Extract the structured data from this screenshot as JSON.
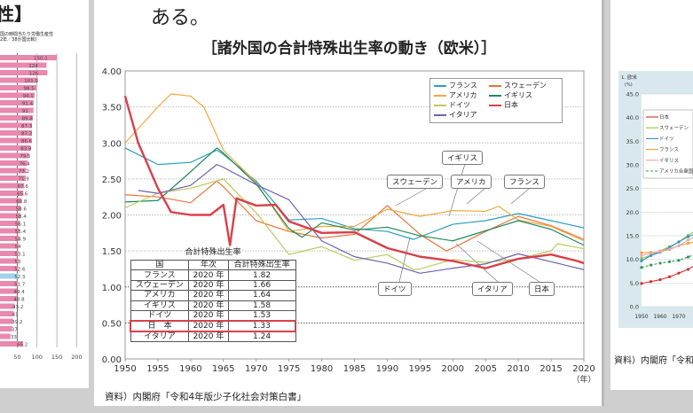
{
  "left_panel": {
    "heading": "性】",
    "subtitle_line1": "国の時間当たり労働生産性",
    "subtitle_line2": "2年／38か国比較)",
    "chart": {
      "type": "bar",
      "orientation": "horizontal",
      "values": [
        150.1,
        124,
        126,
        101.9,
        98.5,
        94.1,
        91.4,
        91,
        89.8,
        87.3,
        87.2,
        86.6,
        83.9,
        79.5,
        76.4,
        73.2,
        71.9,
        67.6,
        65.6,
        60.8,
        58.6,
        58.4,
        56.1,
        55.4,
        54.9,
        54,
        53.1,
        53,
        52.6,
        52.3,
        51.7,
        49.4,
        48.8,
        43.2,
        41,
        39.2,
        37,
        33,
        65.2
      ],
      "highlight_index": 29,
      "bar_color": "#e889ad",
      "highlight_color": "#9fd4ea",
      "xticks": [
        "50",
        "100",
        "150",
        "200"
      ]
    }
  },
  "main": {
    "lead_text": "ある。",
    "title": "［諸外国の合計特殊出生率の動き（欧米）］",
    "source": "資料）内閣府「令和4年版少子化社会対策白書」",
    "x_unit": "（年）",
    "table": {
      "title": "合計特殊出生率",
      "headers": [
        "国",
        "年次",
        "合計特殊出生率"
      ],
      "rows": [
        [
          "フランス",
          "2020 年",
          "1.82"
        ],
        [
          "スウェーデン",
          "2020 年",
          "1.66"
        ],
        [
          "アメリカ",
          "2020 年",
          "1.64"
        ],
        [
          "イギリス",
          "2020 年",
          "1.58"
        ],
        [
          "ドイツ",
          "2020 年",
          "1.53"
        ],
        [
          "日　本",
          "2020 年",
          "1.33"
        ],
        [
          "イタリア",
          "2020 年",
          "1.24"
        ]
      ],
      "highlight_row": 5
    },
    "callouts": [
      "イギリス",
      "スウェーデン",
      "アメリカ",
      "フランス",
      "ドイツ",
      "イタリア",
      "日本"
    ]
  },
  "chart_data": [
    {
      "type": "line",
      "title": "［諸外国の合計特殊出生率の動き（欧米）］",
      "xlim": [
        1950,
        2020
      ],
      "ylim": [
        0,
        4
      ],
      "xticks": [
        "1950",
        "1955",
        "1960",
        "1965",
        "1970",
        "1975",
        "1980",
        "1985",
        "1990",
        "1995",
        "2000",
        "2005",
        "2010",
        "2015",
        "2020"
      ],
      "yticks": [
        "0.00",
        "0.50",
        "1.00",
        "1.50",
        "2.00",
        "2.50",
        "3.00",
        "3.50",
        "4.00"
      ],
      "grid": "horizontal dotted",
      "legend": "top-right",
      "series": [
        {
          "name": "フランス",
          "color": "#2a9fc0",
          "width": 1.2,
          "x": [
            1950,
            1955,
            1960,
            1964,
            1965,
            1970,
            1975,
            1980,
            1985,
            1990,
            1994,
            2000,
            2005,
            2010,
            2015,
            2020
          ],
          "y": [
            2.93,
            2.7,
            2.73,
            2.9,
            2.84,
            2.47,
            1.93,
            1.95,
            1.81,
            1.77,
            1.66,
            1.87,
            1.92,
            2.02,
            1.92,
            1.82
          ]
        },
        {
          "name": "スウェーデン",
          "color": "#e8743b",
          "width": 1.2,
          "x": [
            1950,
            1955,
            1960,
            1964,
            1965,
            1970,
            1975,
            1980,
            1985,
            1990,
            1995,
            1999,
            2000,
            2005,
            2010,
            2015,
            2020
          ],
          "y": [
            2.28,
            2.25,
            2.17,
            2.47,
            2.39,
            1.92,
            1.77,
            1.68,
            1.73,
            2.13,
            1.73,
            1.5,
            1.54,
            1.77,
            1.98,
            1.85,
            1.66
          ]
        },
        {
          "name": "アメリカ",
          "color": "#f0a840",
          "width": 1.2,
          "x": [
            1950,
            1955,
            1957,
            1960,
            1962,
            1965,
            1970,
            1975,
            1980,
            1985,
            1990,
            1995,
            2000,
            2005,
            2007,
            2010,
            2015,
            2020
          ],
          "y": [
            3.0,
            3.5,
            3.68,
            3.65,
            3.5,
            2.9,
            2.45,
            1.77,
            1.84,
            1.84,
            2.08,
            1.98,
            2.06,
            2.05,
            2.12,
            1.93,
            1.84,
            1.64
          ]
        },
        {
          "name": "イギリス",
          "color": "#1f8a5a",
          "width": 1.2,
          "x": [
            1950,
            1955,
            1960,
            1964,
            1965,
            1970,
            1975,
            1977,
            1980,
            1985,
            1990,
            1995,
            2000,
            2005,
            2010,
            2015,
            2020
          ],
          "y": [
            2.18,
            2.2,
            2.6,
            2.93,
            2.86,
            2.43,
            1.81,
            1.69,
            1.89,
            1.79,
            1.83,
            1.71,
            1.64,
            1.78,
            1.92,
            1.8,
            1.58
          ]
        },
        {
          "name": "ドイツ",
          "color": "#b8cc5a",
          "width": 1.2,
          "x": [
            1950,
            1955,
            1960,
            1965,
            1970,
            1975,
            1980,
            1985,
            1990,
            1994,
            1995,
            2000,
            2005,
            2010,
            2015,
            2016,
            2020
          ],
          "y": [
            2.1,
            2.3,
            2.37,
            2.5,
            2.03,
            1.45,
            1.56,
            1.37,
            1.45,
            1.24,
            1.25,
            1.38,
            1.34,
            1.39,
            1.5,
            1.6,
            1.53
          ]
        },
        {
          "name": "イタリア",
          "color": "#7060b0",
          "width": 1.2,
          "x": [
            1952,
            1955,
            1960,
            1964,
            1965,
            1970,
            1975,
            1980,
            1985,
            1990,
            1995,
            2000,
            2005,
            2010,
            2015,
            2020
          ],
          "y": [
            2.34,
            2.3,
            2.41,
            2.7,
            2.66,
            2.42,
            2.21,
            1.64,
            1.42,
            1.33,
            1.19,
            1.26,
            1.32,
            1.46,
            1.35,
            1.24
          ]
        },
        {
          "name": "日本",
          "color": "#d9404a",
          "width": 2.4,
          "x": [
            1950,
            1952,
            1955,
            1957,
            1960,
            1963,
            1965,
            1966,
            1967,
            1970,
            1973,
            1975,
            1980,
            1985,
            1990,
            1995,
            2000,
            2005,
            2010,
            2015,
            2019,
            2020
          ],
          "y": [
            3.65,
            3.0,
            2.37,
            2.04,
            2.0,
            2.0,
            2.14,
            1.58,
            2.23,
            2.13,
            2.14,
            1.91,
            1.75,
            1.76,
            1.54,
            1.42,
            1.36,
            1.26,
            1.39,
            1.45,
            1.36,
            1.33
          ]
        }
      ]
    },
    {
      "type": "line",
      "title": "1. 欧米",
      "ylabel": "(%)",
      "ylim": [
        0,
        45
      ],
      "yticks": [
        "0.0",
        "5.0",
        "10.0",
        "15.0",
        "20.0",
        "25.0",
        "30.0",
        "35.0",
        "40.0",
        "45.0"
      ],
      "xticks": [
        "1950",
        "1960",
        "1970",
        "19"
      ],
      "source": "資料）内閣府「令和",
      "series": [
        {
          "name": "日本",
          "color": "#d0302f",
          "x": [
            1950,
            1955,
            1960,
            1965,
            1970,
            1975,
            1980
          ],
          "y": [
            4.9,
            5.3,
            5.7,
            6.3,
            7.1,
            7.9,
            9.1
          ]
        },
        {
          "name": "スウェーデン",
          "color": "#8cc84b",
          "x": [
            1950,
            1955,
            1960,
            1965,
            1970,
            1975,
            1980
          ],
          "y": [
            10.2,
            10.9,
            11.8,
            12.7,
            13.7,
            15.1,
            16.3
          ]
        },
        {
          "name": "ドイツ",
          "color": "#2b8fd0",
          "x": [
            1950,
            1955,
            1960,
            1965,
            1970,
            1975,
            1980
          ],
          "y": [
            9.7,
            10.8,
            11.5,
            12.5,
            13.7,
            14.8,
            15.6
          ]
        },
        {
          "name": "フランス",
          "color": "#f0a030",
          "x": [
            1950,
            1955,
            1960,
            1965,
            1970,
            1975,
            1980
          ],
          "y": [
            11.4,
            11.5,
            11.6,
            12.1,
            12.9,
            13.4,
            13.9
          ]
        },
        {
          "name": "イギリス",
          "color": "#f0a0b0",
          "x": [
            1950,
            1955,
            1960,
            1965,
            1970,
            1975,
            1980
          ],
          "y": [
            10.8,
            11.3,
            11.7,
            12.2,
            12.9,
            14.1,
            15.0
          ]
        },
        {
          "name": "アメリカ合衆国",
          "color": "#2a9a50",
          "x": [
            1950,
            1955,
            1960,
            1965,
            1970,
            1975,
            1980
          ],
          "y": [
            8.3,
            8.8,
            9.2,
            9.5,
            9.8,
            10.5,
            11.3
          ]
        }
      ]
    }
  ]
}
